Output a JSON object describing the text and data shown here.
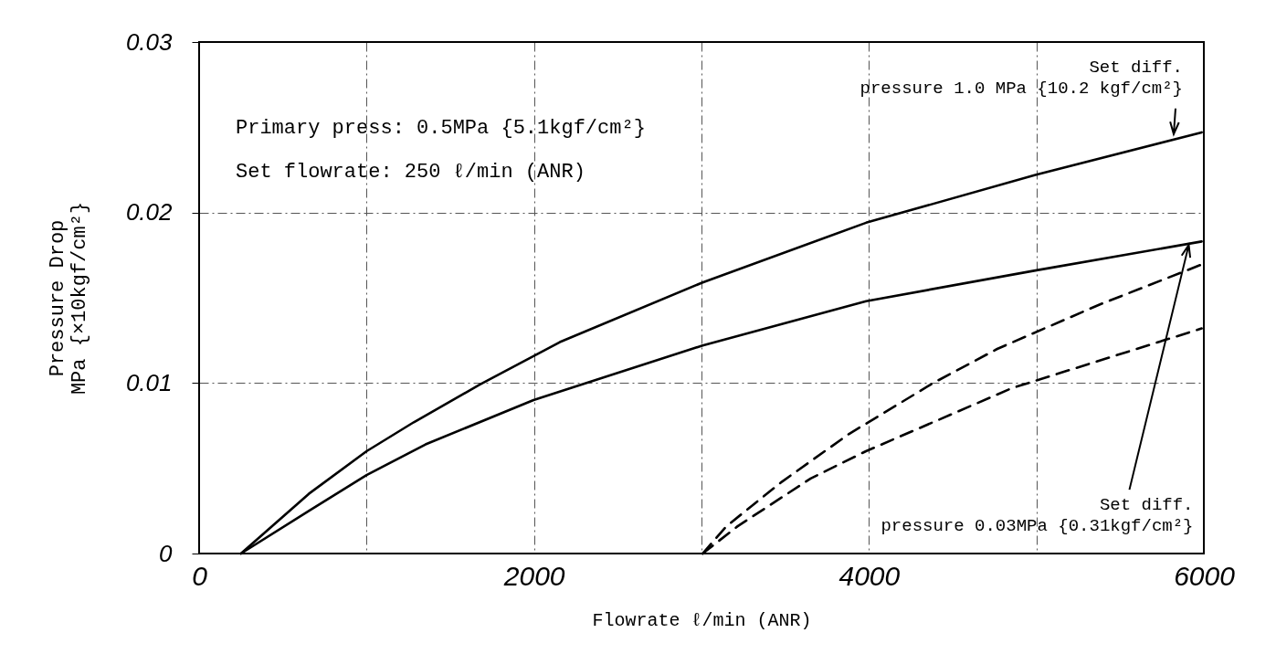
{
  "chart_data": {
    "type": "line",
    "xlabel": "Flowrate ℓ/min (ANR)",
    "ylabel": "Pressure Drop\nMPa {×10kgf/cm²}",
    "xlim": [
      0,
      6000
    ],
    "ylim": [
      0,
      0.03
    ],
    "xticks": [
      0,
      {
        "value": 1000,
        "label": null
      },
      2000,
      {
        "value": 3000,
        "label": null
      },
      4000,
      {
        "value": 5000,
        "label": null
      },
      6000
    ],
    "yticks": [
      0,
      0.01,
      0.02,
      0.03
    ],
    "grid": true,
    "marker": "none",
    "series": [
      {
        "color": "#000000",
        "line_style": "solid",
        "x": [
          250,
          655,
          1000,
          1282,
          1675,
          2154,
          3007,
          3983,
          4994,
          5987
        ],
        "values": [
          0,
          0.0035,
          0.006,
          0.0077,
          0.0099,
          0.0124,
          0.0159,
          0.0194,
          0.0222,
          0.0247
        ]
      },
      {
        "color": "#000000",
        "line_style": "solid",
        "x": [
          250,
          655,
          1000,
          1352,
          1997,
          3007,
          3983,
          4994,
          5987
        ],
        "values": [
          0,
          0.0025,
          0.0046,
          0.0064,
          0.009,
          0.0122,
          0.0148,
          0.0166,
          0.0183
        ]
      },
      {
        "color": "#000000",
        "line_style": "dashed",
        "x": [
          3007,
          3149,
          3479,
          3879,
          4384,
          4766,
          5377,
          6000
        ],
        "values": [
          0,
          0.0016,
          0.0042,
          0.007,
          0.01,
          0.012,
          0.0146,
          0.017
        ]
      },
      {
        "color": "#000000",
        "line_style": "dashed",
        "x": [
          3007,
          3216,
          3652,
          3982,
          4854,
          5987
        ],
        "values": [
          0,
          0.0016,
          0.0044,
          0.006,
          0.0097,
          0.0132
        ]
      }
    ],
    "annotations": [
      "Primary press: 0.5MPa {5.1kgf/cm²}",
      "Set flowrate: 250 ℓ/min (ANR)",
      {
        "text": "Set diff.\npressure 1.0 MPa {10.2 kgf/cm²}",
        "x": 5820,
        "y": 0.0246
      },
      {
        "text": "Set diff.\npressure 0.03MPa {0.31kgf/cm²}",
        "x": 5910,
        "y": 0.0181
      }
    ]
  }
}
